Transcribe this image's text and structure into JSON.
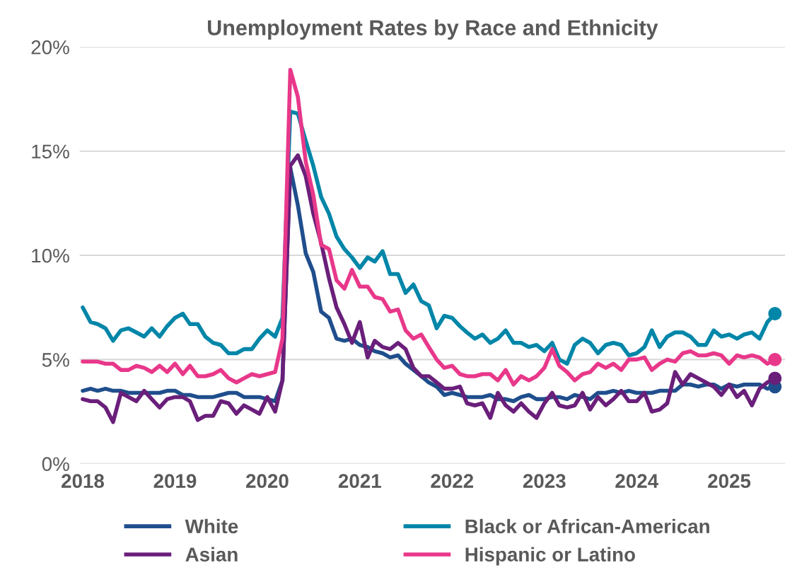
{
  "chart_data": {
    "type": "line",
    "title": "Unemployment Rates by Race and Ethnicity",
    "x": [
      "2018-01",
      "2018-02",
      "2018-03",
      "2018-04",
      "2018-05",
      "2018-06",
      "2018-07",
      "2018-08",
      "2018-09",
      "2018-10",
      "2018-11",
      "2018-12",
      "2019-01",
      "2019-02",
      "2019-03",
      "2019-04",
      "2019-05",
      "2019-06",
      "2019-07",
      "2019-08",
      "2019-09",
      "2019-10",
      "2019-11",
      "2019-12",
      "2020-01",
      "2020-02",
      "2020-03",
      "2020-04",
      "2020-05",
      "2020-06",
      "2020-07",
      "2020-08",
      "2020-09",
      "2020-10",
      "2020-11",
      "2020-12",
      "2021-01",
      "2021-02",
      "2021-03",
      "2021-04",
      "2021-05",
      "2021-06",
      "2021-07",
      "2021-08",
      "2021-09",
      "2021-10",
      "2021-11",
      "2021-12",
      "2022-01",
      "2022-02",
      "2022-03",
      "2022-04",
      "2022-05",
      "2022-06",
      "2022-07",
      "2022-08",
      "2022-09",
      "2022-10",
      "2022-11",
      "2022-12",
      "2023-01",
      "2023-02",
      "2023-03",
      "2023-04",
      "2023-05",
      "2023-06",
      "2023-07",
      "2023-08",
      "2023-09",
      "2023-10",
      "2023-11",
      "2023-12",
      "2024-01",
      "2024-02",
      "2024-03",
      "2024-04",
      "2024-05",
      "2024-06",
      "2024-07",
      "2024-08",
      "2024-09",
      "2024-10",
      "2024-11",
      "2024-12",
      "2025-01",
      "2025-02",
      "2025-03",
      "2025-04",
      "2025-05",
      "2025-06",
      "2025-07"
    ],
    "series": [
      {
        "name": "White",
        "color": "#1f4e8c",
        "values": [
          3.5,
          3.6,
          3.5,
          3.6,
          3.5,
          3.5,
          3.4,
          3.4,
          3.4,
          3.4,
          3.4,
          3.5,
          3.5,
          3.3,
          3.3,
          3.2,
          3.2,
          3.2,
          3.3,
          3.4,
          3.4,
          3.2,
          3.2,
          3.2,
          3.1,
          3.0,
          4.0,
          14.2,
          12.4,
          10.1,
          9.2,
          7.3,
          7.0,
          6.0,
          5.9,
          6.0,
          5.7,
          5.6,
          5.4,
          5.3,
          5.1,
          5.2,
          4.8,
          4.5,
          4.2,
          3.9,
          3.7,
          3.3,
          3.4,
          3.3,
          3.2,
          3.2,
          3.2,
          3.3,
          3.1,
          3.1,
          3.0,
          3.2,
          3.3,
          3.1,
          3.1,
          3.2,
          3.2,
          3.1,
          3.3,
          3.2,
          3.1,
          3.4,
          3.4,
          3.5,
          3.4,
          3.5,
          3.4,
          3.4,
          3.4,
          3.5,
          3.5,
          3.5,
          3.8,
          3.8,
          3.7,
          3.8,
          3.8,
          3.6,
          3.8,
          3.7,
          3.8,
          3.8,
          3.8,
          3.6,
          3.7
        ]
      },
      {
        "name": "Black or African-American",
        "color": "#0086a8",
        "values": [
          7.5,
          6.8,
          6.7,
          6.5,
          5.9,
          6.4,
          6.5,
          6.3,
          6.1,
          6.5,
          6.1,
          6.6,
          7.0,
          7.2,
          6.7,
          6.7,
          6.1,
          5.8,
          5.7,
          5.3,
          5.3,
          5.5,
          5.5,
          6.0,
          6.4,
          6.1,
          7.0,
          16.9,
          16.8,
          15.5,
          14.3,
          12.8,
          12.0,
          10.9,
          10.3,
          9.9,
          9.4,
          9.9,
          9.7,
          10.2,
          9.1,
          9.1,
          8.2,
          8.6,
          7.8,
          7.6,
          6.5,
          7.1,
          7.0,
          6.6,
          6.3,
          6.0,
          6.2,
          5.8,
          6.0,
          6.4,
          5.8,
          5.8,
          5.6,
          5.7,
          5.4,
          5.8,
          5.0,
          4.8,
          5.7,
          6.0,
          5.8,
          5.3,
          5.7,
          5.8,
          5.7,
          5.2,
          5.3,
          5.6,
          6.4,
          5.6,
          6.1,
          6.3,
          6.3,
          6.1,
          5.7,
          5.7,
          6.4,
          6.1,
          6.2,
          6.0,
          6.2,
          6.3,
          6.0,
          6.8,
          7.2
        ]
      },
      {
        "name": "Asian",
        "color": "#6a1f7a",
        "values": [
          3.1,
          3.0,
          3.0,
          2.7,
          2.0,
          3.4,
          3.2,
          3.0,
          3.5,
          3.1,
          2.7,
          3.1,
          3.2,
          3.2,
          3.0,
          2.1,
          2.3,
          2.3,
          3.0,
          2.9,
          2.4,
          2.8,
          2.6,
          2.4,
          3.2,
          2.5,
          4.0,
          14.3,
          14.8,
          13.8,
          12.0,
          10.6,
          8.9,
          7.5,
          6.7,
          5.8,
          6.8,
          5.1,
          5.9,
          5.6,
          5.5,
          5.8,
          5.5,
          4.6,
          4.2,
          4.2,
          3.9,
          3.6,
          3.6,
          3.7,
          2.9,
          2.8,
          2.9,
          2.2,
          3.4,
          2.8,
          2.5,
          2.9,
          2.5,
          2.2,
          2.9,
          3.4,
          2.8,
          2.7,
          2.8,
          3.4,
          2.6,
          3.2,
          2.8,
          3.1,
          3.5,
          3.0,
          3.0,
          3.4,
          2.5,
          2.6,
          2.9,
          4.4,
          3.8,
          4.3,
          4.1,
          3.9,
          3.7,
          3.3,
          3.8,
          3.2,
          3.5,
          2.8,
          3.6,
          3.9,
          4.1
        ]
      },
      {
        "name": "Hispanic or Latino",
        "color": "#e8388a",
        "values": [
          4.9,
          4.9,
          4.9,
          4.8,
          4.8,
          4.5,
          4.5,
          4.7,
          4.6,
          4.4,
          4.7,
          4.4,
          4.8,
          4.3,
          4.7,
          4.2,
          4.2,
          4.3,
          4.5,
          4.1,
          3.9,
          4.1,
          4.3,
          4.2,
          4.3,
          4.4,
          6.0,
          18.9,
          17.6,
          14.5,
          12.9,
          10.5,
          10.3,
          8.8,
          8.4,
          9.3,
          8.5,
          8.5,
          8.0,
          7.9,
          7.3,
          7.4,
          6.4,
          6.0,
          6.2,
          5.6,
          5.0,
          4.6,
          4.7,
          4.3,
          4.2,
          4.2,
          4.3,
          4.3,
          4.0,
          4.5,
          3.8,
          4.2,
          4.0,
          4.2,
          4.6,
          5.5,
          4.7,
          4.4,
          4.0,
          4.3,
          4.4,
          4.8,
          4.6,
          4.8,
          4.5,
          5.0,
          5.0,
          5.1,
          4.5,
          4.8,
          5.0,
          4.9,
          5.3,
          5.4,
          5.2,
          5.2,
          5.3,
          5.2,
          4.8,
          5.2,
          5.1,
          5.2,
          5.1,
          4.8,
          5.0
        ]
      },
      {
        "type": "scatter",
        "color": "#1f4e8c",
        "x": [
          "2025-07"
        ],
        "values": [
          3.7
        ]
      },
      {
        "type": "scatter",
        "color": "#0086a8",
        "x": [
          "2025-07"
        ],
        "values": [
          7.2
        ]
      },
      {
        "type": "scatter",
        "color": "#6a1f7a",
        "x": [
          "2025-07"
        ],
        "values": [
          4.1
        ]
      },
      {
        "type": "scatter",
        "color": "#e8388a",
        "x": [
          "2025-07"
        ],
        "values": [
          5.0
        ]
      }
    ],
    "xlim": [
      "2017-12-20",
      "2025-08-10"
    ],
    "xticks": [
      {
        "value": "2018",
        "label": "2018"
      },
      {
        "value": "2019",
        "label": "2019"
      },
      {
        "value": "2020",
        "label": "2020"
      },
      {
        "value": "2021",
        "label": "2021"
      },
      {
        "value": "2022",
        "label": "2022"
      },
      {
        "value": "2023",
        "label": "2023"
      },
      {
        "value": "2024",
        "label": "2024"
      },
      {
        "value": "2025",
        "label": "2025"
      }
    ],
    "ylim": [
      0,
      20
    ],
    "yticks": [
      {
        "value": 0,
        "label": "0%"
      },
      {
        "value": 5,
        "label": "5%"
      },
      {
        "value": 10,
        "label": "10%"
      },
      {
        "value": 15,
        "label": "15%"
      },
      {
        "value": 20,
        "label": "20%"
      }
    ],
    "grid": "y",
    "legend": "bottom"
  }
}
